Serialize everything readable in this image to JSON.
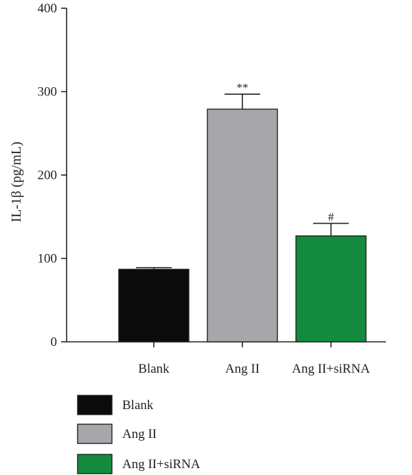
{
  "chart_data": {
    "type": "bar",
    "title": "",
    "xlabel": "",
    "ylabel": "IL-1β (pg/mL)",
    "ylim": [
      0,
      400
    ],
    "yticks": [
      0,
      100,
      200,
      300,
      400
    ],
    "categories": [
      "Blank",
      "Ang II",
      "Ang II+siRNA"
    ],
    "values": [
      87,
      279,
      127
    ],
    "errors": [
      2,
      18,
      15
    ],
    "annotations": [
      "",
      "**",
      "#"
    ],
    "colors": [
      "#0b0b0b",
      "#a7a6aa",
      "#138a3e"
    ],
    "grid": false,
    "legend": {
      "placement": "bottom-left",
      "entries": [
        {
          "label": "Blank",
          "color": "#0b0b0b"
        },
        {
          "label": "Ang II",
          "color": "#a7a6aa"
        },
        {
          "label": "Ang II+siRNA",
          "color": "#138a3e"
        }
      ]
    }
  }
}
